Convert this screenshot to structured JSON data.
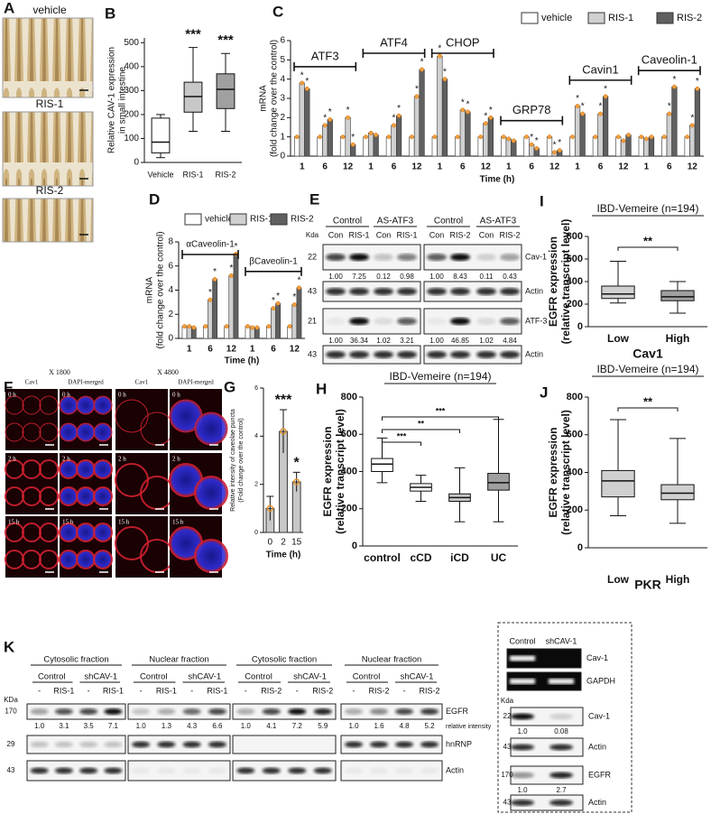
{
  "panel_labels": [
    "A",
    "B",
    "C",
    "D",
    "E",
    "F",
    "G",
    "H",
    "I",
    "J",
    "K"
  ],
  "panel_a": {
    "labels": [
      "vehicle",
      "RIS-1",
      "RIS-2"
    ]
  },
  "chart_data": [
    {
      "type": "box",
      "ylabel": [
        "Relative CAV-1 expression",
        "in small intestine"
      ],
      "categories": [
        "Vehicle",
        "RIS-1",
        "RIS-2"
      ],
      "boxes": [
        {
          "min": 20,
          "q1": 40,
          "median": 85,
          "q3": 185,
          "max": 200
        },
        {
          "min": 130,
          "q1": 210,
          "median": 275,
          "q3": 335,
          "max": 480
        },
        {
          "min": 130,
          "q1": 225,
          "median": 305,
          "q3": 370,
          "max": 455
        }
      ],
      "colors": [
        "#ffffff",
        "#c8c8c8",
        "#a0a0a0"
      ],
      "annotations": [
        null,
        "***",
        "***"
      ],
      "ylim": [
        0,
        520
      ],
      "yticks": [
        0,
        100,
        200,
        300,
        400,
        500
      ]
    },
    {
      "type": "grouped_bar",
      "ylabel": [
        "mRNA",
        "(fold change over the control)"
      ],
      "xlabel": "Time (h)",
      "groups": [
        "ATF3",
        "ATF4",
        "CHOP",
        "GRP78",
        "Cavin1",
        "Caveolin-1"
      ],
      "categories": [
        "1",
        "6",
        "12",
        "1",
        "6",
        "12",
        "1",
        "6",
        "12",
        "1",
        "6",
        "12",
        "1",
        "6",
        "12",
        "1",
        "6",
        "12"
      ],
      "series": [
        {
          "name": "vehicle",
          "color": "#ffffff",
          "values": [
            1,
            1,
            1,
            1,
            1,
            1,
            1,
            1,
            1,
            1,
            1,
            1,
            1,
            1,
            1,
            1,
            1,
            1
          ]
        },
        {
          "name": "RIS-1",
          "color": "#d0d0d0",
          "values": [
            3.8,
            1.6,
            2.0,
            1.2,
            1.6,
            3.1,
            5.2,
            2.4,
            1.7,
            0.9,
            0.6,
            0.2,
            2.6,
            2.2,
            0.8,
            0.9,
            2.2,
            1.6
          ],
          "significance": [
            "*",
            "*",
            "*",
            null,
            "*",
            "*",
            "*",
            "*",
            "*",
            null,
            "*",
            "*",
            "*",
            "*",
            null,
            null,
            "*",
            "*"
          ]
        },
        {
          "name": "RIS-2",
          "color": "#606060",
          "values": [
            3.5,
            1.9,
            0.6,
            1.1,
            2.1,
            4.5,
            4.0,
            2.3,
            2.0,
            0.8,
            0.4,
            0.3,
            2.2,
            3.1,
            1.1,
            1.0,
            3.6,
            3.5
          ],
          "significance": [
            "*",
            "*",
            "*",
            null,
            "*",
            "*",
            "*",
            "*",
            "*",
            null,
            "*",
            "*",
            "*",
            "*",
            null,
            null,
            "*",
            "*"
          ]
        }
      ],
      "ylim": [
        0,
        6
      ],
      "yticks": [
        0,
        1,
        2,
        3,
        4,
        5,
        6
      ]
    },
    {
      "type": "grouped_bar",
      "ylabel": [
        "mRNA",
        "(fold change over the control)"
      ],
      "xlabel": "Time (h)",
      "groups": [
        "αCaveolin-1",
        "βCaveolin-1"
      ],
      "categories": [
        "1",
        "6",
        "12",
        "1",
        "6",
        "12"
      ],
      "series": [
        {
          "name": "vehicle",
          "color": "#ffffff",
          "values": [
            1,
            1,
            1,
            1,
            1,
            1
          ]
        },
        {
          "name": "RIS-1",
          "color": "#d0d0d0",
          "values": [
            1.0,
            3.2,
            5.2,
            0.9,
            2.5,
            2.8
          ],
          "significance": [
            null,
            "*",
            "*",
            null,
            "*",
            "*"
          ]
        },
        {
          "name": "RIS-2",
          "color": "#606060",
          "values": [
            0.9,
            4.9,
            7.0,
            0.9,
            2.9,
            4.2
          ],
          "significance": [
            null,
            "*",
            "*",
            null,
            "*",
            "*"
          ]
        }
      ],
      "ylim": [
        0,
        8
      ],
      "yticks": [
        0,
        2,
        4,
        6,
        8
      ]
    },
    {
      "type": "bar_error",
      "ylabel": [
        "Relative intensity of caveolae puncta",
        "(Fold change over the control)"
      ],
      "xlabel": "Time (h)",
      "categories": [
        "0",
        "2",
        "15"
      ],
      "values": [
        1.0,
        4.2,
        2.1
      ],
      "errors": [
        0.5,
        0.9,
        0.4
      ],
      "color": "#c8c8c8",
      "annotations": [
        null,
        "***",
        "*"
      ],
      "ylim": [
        0,
        6
      ],
      "yticks": [
        0,
        2,
        4,
        6
      ]
    },
    {
      "type": "box",
      "title": "IBD-Vemeire (n=194)",
      "ylabel": [
        "EGFR expression",
        "(relative transcript level)"
      ],
      "categories": [
        "control",
        "cCD",
        "iCD",
        "UC"
      ],
      "boxes": [
        {
          "min": 340,
          "q1": 400,
          "median": 440,
          "q3": 470,
          "max": 580
        },
        {
          "min": 240,
          "q1": 295,
          "median": 315,
          "q3": 335,
          "max": 380
        },
        {
          "min": 130,
          "q1": 240,
          "median": 260,
          "q3": 280,
          "max": 420
        },
        {
          "min": 130,
          "q1": 300,
          "median": 340,
          "q3": 390,
          "max": 680
        }
      ],
      "colors": [
        "#ffffff",
        "#ffffff",
        "#c8c8c8",
        "#a0a0a0"
      ],
      "comparisons": [
        {
          "categories": [
            0,
            1
          ],
          "label": "***"
        },
        {
          "categories": [
            0,
            2
          ],
          "label": "**"
        },
        {
          "categories": [
            0,
            3
          ],
          "label": "***"
        }
      ],
      "ylim": [
        0,
        800
      ],
      "yticks": [
        0,
        200,
        400,
        600,
        800
      ]
    },
    {
      "type": "box",
      "title": "IBD-Vemeire (n=194)",
      "ylabel": [
        "EGFR expression",
        "(relative transcript level)"
      ],
      "xlabel": "Cav1",
      "categories": [
        "Low",
        "High"
      ],
      "boxes": [
        {
          "min": 210,
          "q1": 250,
          "median": 290,
          "q3": 360,
          "max": 580
        },
        {
          "min": 120,
          "q1": 230,
          "median": 265,
          "q3": 320,
          "max": 400
        }
      ],
      "colors": [
        "#d0d0d0",
        "#a0a0a0"
      ],
      "comparisons": [
        {
          "categories": [
            0,
            1
          ],
          "label": "**"
        }
      ],
      "ylim": [
        0,
        800
      ],
      "yticks": [
        0,
        200,
        400,
        600,
        800
      ]
    },
    {
      "type": "box",
      "title": "IBD-Vemeire (n=194)",
      "ylabel": [
        "EGFR expression",
        "(relative transcript level)"
      ],
      "xlabel": "PKR",
      "categories": [
        "Low",
        "High"
      ],
      "boxes": [
        {
          "min": 170,
          "q1": 270,
          "median": 355,
          "q3": 410,
          "max": 680
        },
        {
          "min": 130,
          "q1": 255,
          "median": 290,
          "q3": 335,
          "max": 580
        }
      ],
      "colors": [
        "#d0d0d0",
        "#d0d0d0"
      ],
      "comparisons": [
        {
          "categories": [
            0,
            1
          ],
          "label": "**"
        }
      ],
      "ylim": [
        0,
        800
      ],
      "yticks": [
        0,
        200,
        400,
        600,
        800
      ]
    }
  ],
  "panel_e": {
    "groups": [
      "Control",
      "AS-ATF3",
      "Control",
      "AS-ATF3"
    ],
    "lanes": [
      "Con",
      "RIS-1",
      "Con",
      "RIS-1",
      "Con",
      "RIS-2",
      "Con",
      "RIS-2"
    ],
    "mw_unit": "Kda",
    "rows": [
      {
        "mw": "22",
        "name": "Cav-1",
        "quant": [
          "1.00",
          "7.25",
          "0.12",
          "0.98",
          "1.00",
          "8.43",
          "0.11",
          "0.43"
        ]
      },
      {
        "mw": "43",
        "name": "Actin"
      },
      {
        "mw": "21",
        "name": "ATF-3",
        "quant": [
          "1.00",
          "36.34",
          "1.02",
          "3.21",
          "1.00",
          "46.85",
          "1.02",
          "4.84"
        ]
      },
      {
        "mw": "43",
        "name": "Actin"
      }
    ]
  },
  "panel_f": {
    "magnifications": [
      "X 1800",
      "X 4800"
    ],
    "channels": [
      "Cav1",
      "DAPI-merged",
      "Cav1",
      "DAPI-merged"
    ],
    "times": [
      "0 h",
      "2 h",
      "15 h"
    ]
  },
  "panel_k": {
    "fractions": [
      "Cytosolic fraction",
      "Nuclear fraction",
      "Cytosolic fraction",
      "Nuclear fraction"
    ],
    "conditions": [
      "Control",
      "shCAV-1"
    ],
    "lanes": [
      "-",
      "RIS-1",
      "-",
      "RIS-1",
      "-",
      "RIS-1",
      "-",
      "RIS-1",
      "-",
      "RIS-2",
      "-",
      "RIS-2",
      "-",
      "RIS-2",
      "-",
      "RIS-2"
    ],
    "mw_unit": "KDa",
    "rows": [
      {
        "mw": "170",
        "name": "EGFR",
        "quant": [
          "1.0",
          "3.1",
          "3.5",
          "7.1",
          "1.0",
          "1.3",
          "4.3",
          "6.6",
          "1.0",
          "4.1",
          "7.2",
          "5.9",
          "1.0",
          "1.6",
          "4.8",
          "5.2"
        ]
      },
      {
        "mw": "29",
        "name": "hnRNP"
      },
      {
        "mw": "43",
        "name": "Actin"
      }
    ],
    "quant_label": "relative intensity",
    "inset": {
      "lanes": [
        "Control",
        "shCAV-1"
      ],
      "gels": [
        "Cav-1",
        "GAPDH"
      ],
      "mw_unit": "Kda",
      "blots": [
        {
          "mw": "22",
          "name": "Cav-1",
          "quant": [
            "1.0",
            "0.08"
          ]
        },
        {
          "mw": "43",
          "name": "Actin"
        },
        {
          "mw": "170",
          "name": "EGFR",
          "quant": [
            "1.0",
            "2.7"
          ]
        },
        {
          "mw": "43",
          "name": "Actin"
        }
      ]
    }
  }
}
